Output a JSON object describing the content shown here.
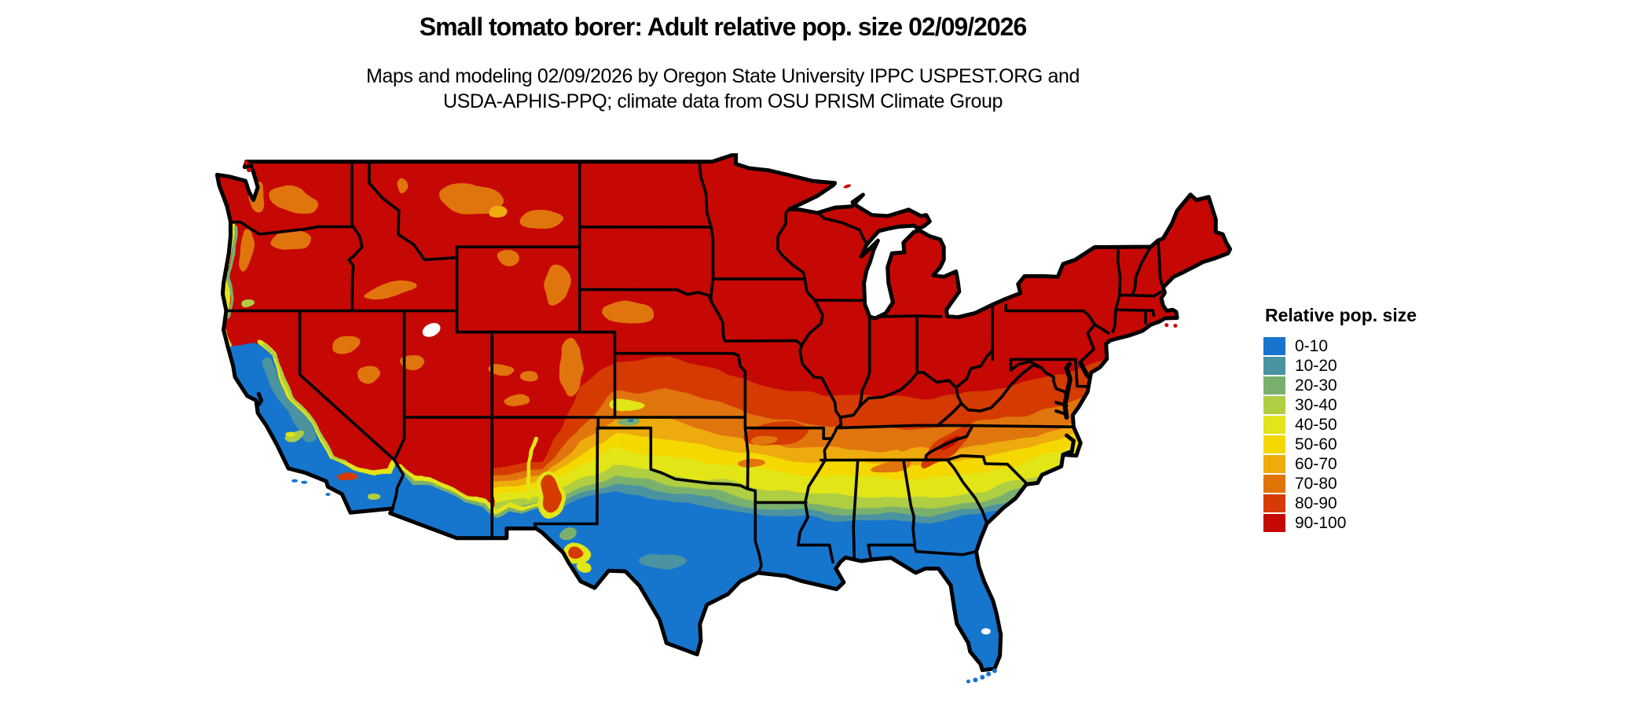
{
  "header": {
    "title": "Small tomato borer: Adult relative pop. size 02/09/2026",
    "subtitle_line1": "Maps and modeling 02/09/2026 by Oregon State University IPPC USPEST.ORG and",
    "subtitle_line2": "USDA-APHIS-PPQ; climate data from OSU PRISM Climate Group"
  },
  "legend": {
    "title": "Relative pop. size",
    "items": [
      {
        "label": "0-10",
        "color": "#1874CD"
      },
      {
        "label": "10-20",
        "color": "#4B93A0"
      },
      {
        "label": "20-30",
        "color": "#7AB06E"
      },
      {
        "label": "30-40",
        "color": "#AFCE42"
      },
      {
        "label": "40-50",
        "color": "#E2E519"
      },
      {
        "label": "50-60",
        "color": "#F5D800"
      },
      {
        "label": "60-70",
        "color": "#EEAB0C"
      },
      {
        "label": "70-80",
        "color": "#E17408"
      },
      {
        "label": "80-90",
        "color": "#D53B03"
      },
      {
        "label": "90-100",
        "color": "#C50803"
      }
    ]
  },
  "map": {
    "geography": "Contiguous United States",
    "outline_color": "#000000",
    "background_color": "#FFFFFF"
  },
  "chart_data": {
    "type": "heatmap",
    "title": "Small tomato borer: Adult relative pop. size 02/09/2026",
    "legend_title": "Relative pop. size",
    "bins": [
      "0-10",
      "10-20",
      "20-30",
      "30-40",
      "40-50",
      "50-60",
      "60-70",
      "70-80",
      "80-90",
      "90-100"
    ],
    "bin_colors": [
      "#1874CD",
      "#4B93A0",
      "#7AB06E",
      "#AFCE42",
      "#E2E519",
      "#F5D800",
      "#EEAB0C",
      "#E17408",
      "#D53B03",
      "#C50803"
    ],
    "pattern": [
      {
        "region": "Northern tier, Midwest, Northeast, interior West mountains",
        "value": "90-100"
      },
      {
        "region": "Central Plains, Missouri, Kentucky, Virginia",
        "value": "70-90"
      },
      {
        "region": "Oklahoma, Tennessee, North Carolina band",
        "value": "40-70"
      },
      {
        "region": "North Texas, Arkansas, Mississippi, Alabama, Georgia band",
        "value": "10-40"
      },
      {
        "region": "South Texas, Gulf Coast, Florida, coastal California, desert Southwest",
        "value": "0-10"
      }
    ]
  }
}
